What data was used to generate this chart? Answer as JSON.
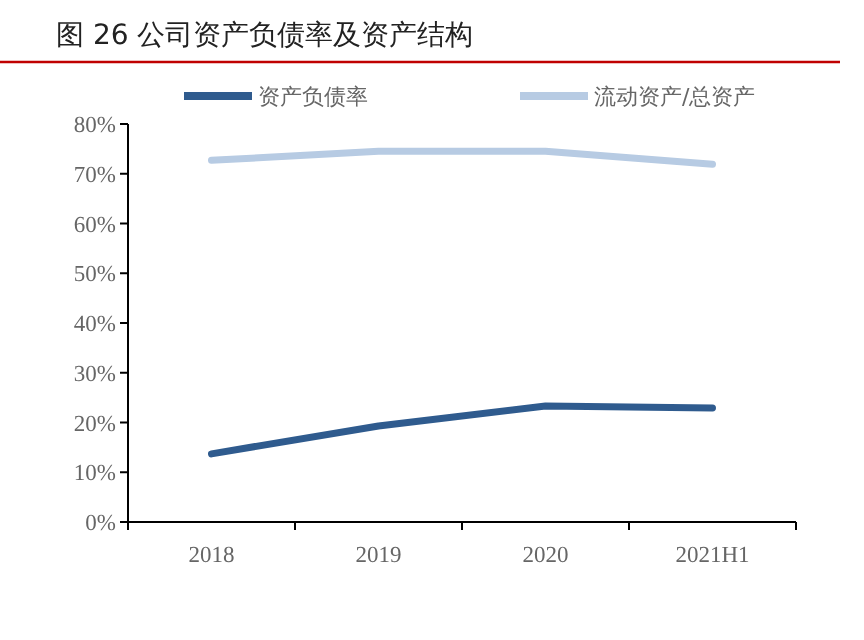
{
  "chart_data": {
    "type": "line",
    "title": "图 26 公司资产负债率及资产结构",
    "categories": [
      "2018",
      "2019",
      "2020",
      "2021H1"
    ],
    "series": [
      {
        "name": "资产负债率",
        "color": "#2f5b8e",
        "values": [
          13.7,
          19.3,
          23.3,
          22.9
        ]
      },
      {
        "name": "流动资产/总资产",
        "color": "#b7cbe3",
        "values": [
          72.7,
          74.5,
          74.5,
          71.9
        ]
      }
    ],
    "ylim": [
      0,
      80
    ],
    "yticks": [
      {
        "value": 0,
        "label": "0%"
      },
      {
        "value": 10,
        "label": "10%"
      },
      {
        "value": 20,
        "label": "20%"
      },
      {
        "value": 30,
        "label": "30%"
      },
      {
        "value": 40,
        "label": "40%"
      },
      {
        "value": 50,
        "label": "50%"
      },
      {
        "value": 60,
        "label": "60%"
      },
      {
        "value": 70,
        "label": "70%"
      },
      {
        "value": 80,
        "label": "80%"
      }
    ],
    "grid": false,
    "legend": "top",
    "marker": "none",
    "line_style": "solid"
  }
}
